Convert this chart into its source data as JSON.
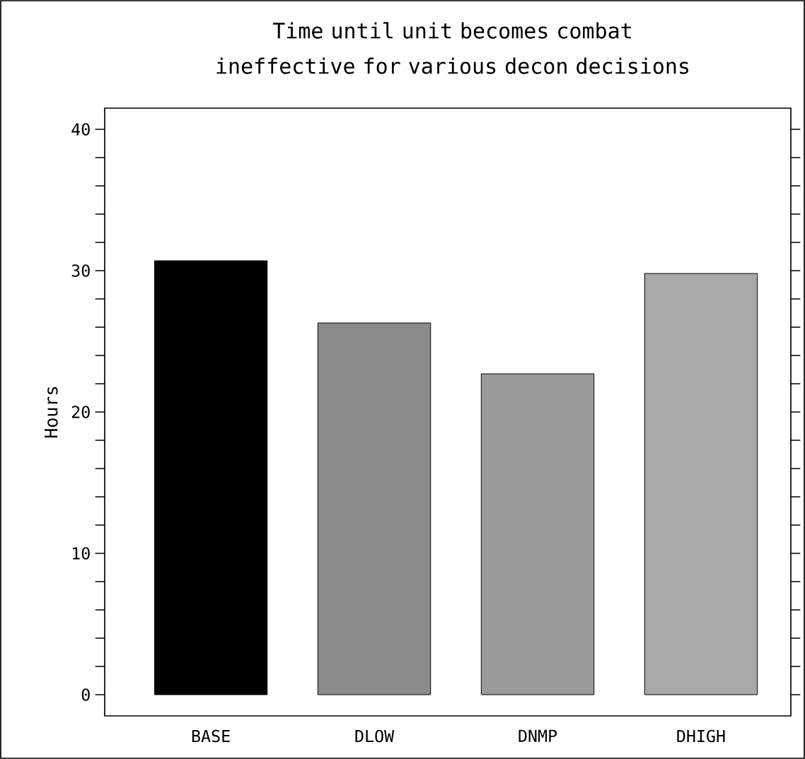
{
  "chart_data": {
    "type": "bar",
    "title": "Time until unit becomes combat ineffective for various decon decisions",
    "ylabel": "Hours",
    "categories": [
      "BASE",
      "DLOW",
      "DNMP",
      "DHIGH"
    ],
    "values": [
      30.7,
      26.3,
      22.7,
      29.8
    ],
    "colors": [
      "#000000",
      "#8a8a8a",
      "#9a9a9a",
      "#a8a8a8"
    ],
    "ylim": [
      -1.5,
      41.5
    ],
    "yticks": [
      0,
      {
        "value": 2,
        "label": null
      },
      {
        "value": 4,
        "label": null
      },
      {
        "value": 6,
        "label": null
      },
      {
        "value": 8,
        "label": null
      },
      10,
      {
        "value": 12,
        "label": null
      },
      {
        "value": 14,
        "label": null
      },
      {
        "value": 16,
        "label": null
      },
      {
        "value": 18,
        "label": null
      },
      20,
      {
        "value": 22,
        "label": null
      },
      {
        "value": 24,
        "label": null
      },
      {
        "value": 26,
        "label": null
      },
      {
        "value": 28,
        "label": null
      },
      30,
      {
        "value": 32,
        "label": null
      },
      {
        "value": 34,
        "label": null
      },
      {
        "value": 36,
        "label": null
      },
      {
        "value": 38,
        "label": null
      },
      40
    ]
  }
}
